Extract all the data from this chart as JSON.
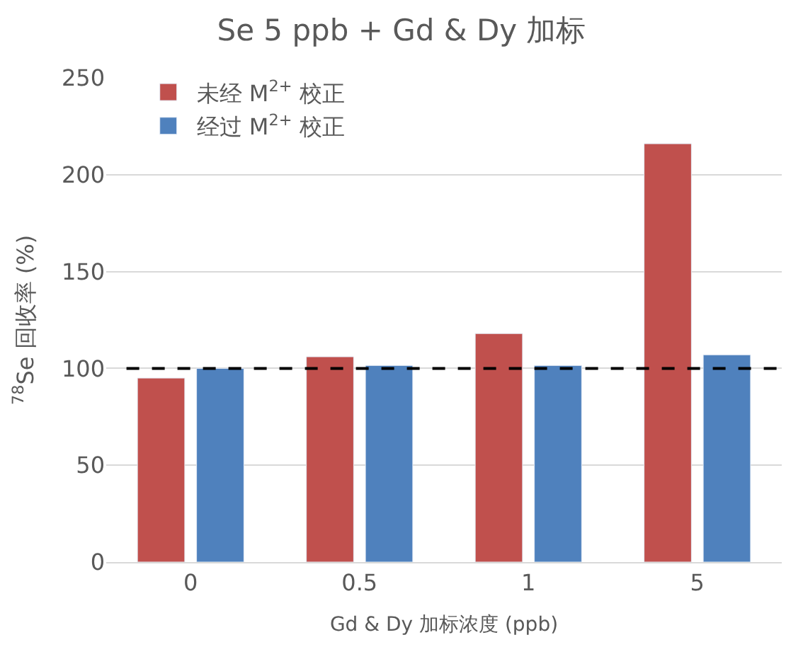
{
  "chart_data": {
    "type": "bar",
    "title": "Se 5 ppb + Gd & Dy 加标",
    "xlabel": "Gd & Dy 加标浓度 (ppb)",
    "ylabel": "$^{78}$Se 回收率 (%)",
    "categories": [
      "0",
      "0.5",
      "1",
      "5"
    ],
    "series": [
      {
        "name": "未经 M$^{2+}$ 校正",
        "color": "#c0504d",
        "values": [
          95,
          106,
          118,
          216
        ]
      },
      {
        "name": "经过 M$^{2+}$ 校正",
        "color": "#4f81bd",
        "values": [
          100,
          101.5,
          101.5,
          107
        ]
      }
    ],
    "ylim": [
      0,
      250
    ],
    "yticks": [
      0,
      50,
      100,
      150,
      200,
      250
    ],
    "grid": "y",
    "legend": "top left",
    "ref_lines": [
      {
        "axis": "y",
        "value": 100,
        "color": "#000000",
        "line_style": "dashed"
      }
    ]
  }
}
